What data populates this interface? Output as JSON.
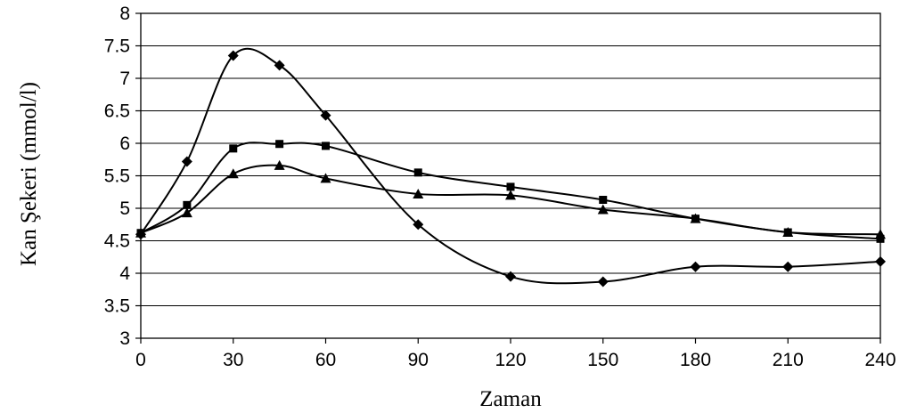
{
  "chart_data": {
    "type": "line",
    "title": "",
    "xlabel": "Zaman",
    "ylabel": "Kan Şekeri (mmol/l)",
    "xlim": [
      0,
      240
    ],
    "ylim": [
      3,
      8
    ],
    "x_ticks": [
      "0",
      "30",
      "60",
      "90",
      "120",
      "150",
      "180",
      "210",
      "240"
    ],
    "y_ticks": [
      "3",
      "3.5",
      "4",
      "4.5",
      "5",
      "5.5",
      "6",
      "6.5",
      "7",
      "7.5",
      "8"
    ],
    "grid": "horizontal",
    "legend": "none",
    "x": [
      0,
      15,
      30,
      45,
      60,
      90,
      120,
      150,
      180,
      210,
      240
    ],
    "series": [
      {
        "marker": "diamond",
        "values": [
          4.6,
          5.72,
          7.35,
          7.2,
          6.43,
          4.75,
          3.95,
          3.87,
          4.1,
          4.1,
          4.18
        ]
      },
      {
        "marker": "square",
        "values": [
          4.62,
          5.05,
          5.92,
          5.99,
          5.96,
          5.55,
          5.33,
          5.13,
          4.84,
          4.63,
          4.53
        ]
      },
      {
        "marker": "triangle",
        "values": [
          4.62,
          4.93,
          5.53,
          5.66,
          5.46,
          5.22,
          5.2,
          4.98,
          4.84,
          4.63,
          4.6
        ]
      }
    ],
    "colors": {
      "line": "#000000",
      "grid": "#000000",
      "background": "#ffffff"
    }
  }
}
